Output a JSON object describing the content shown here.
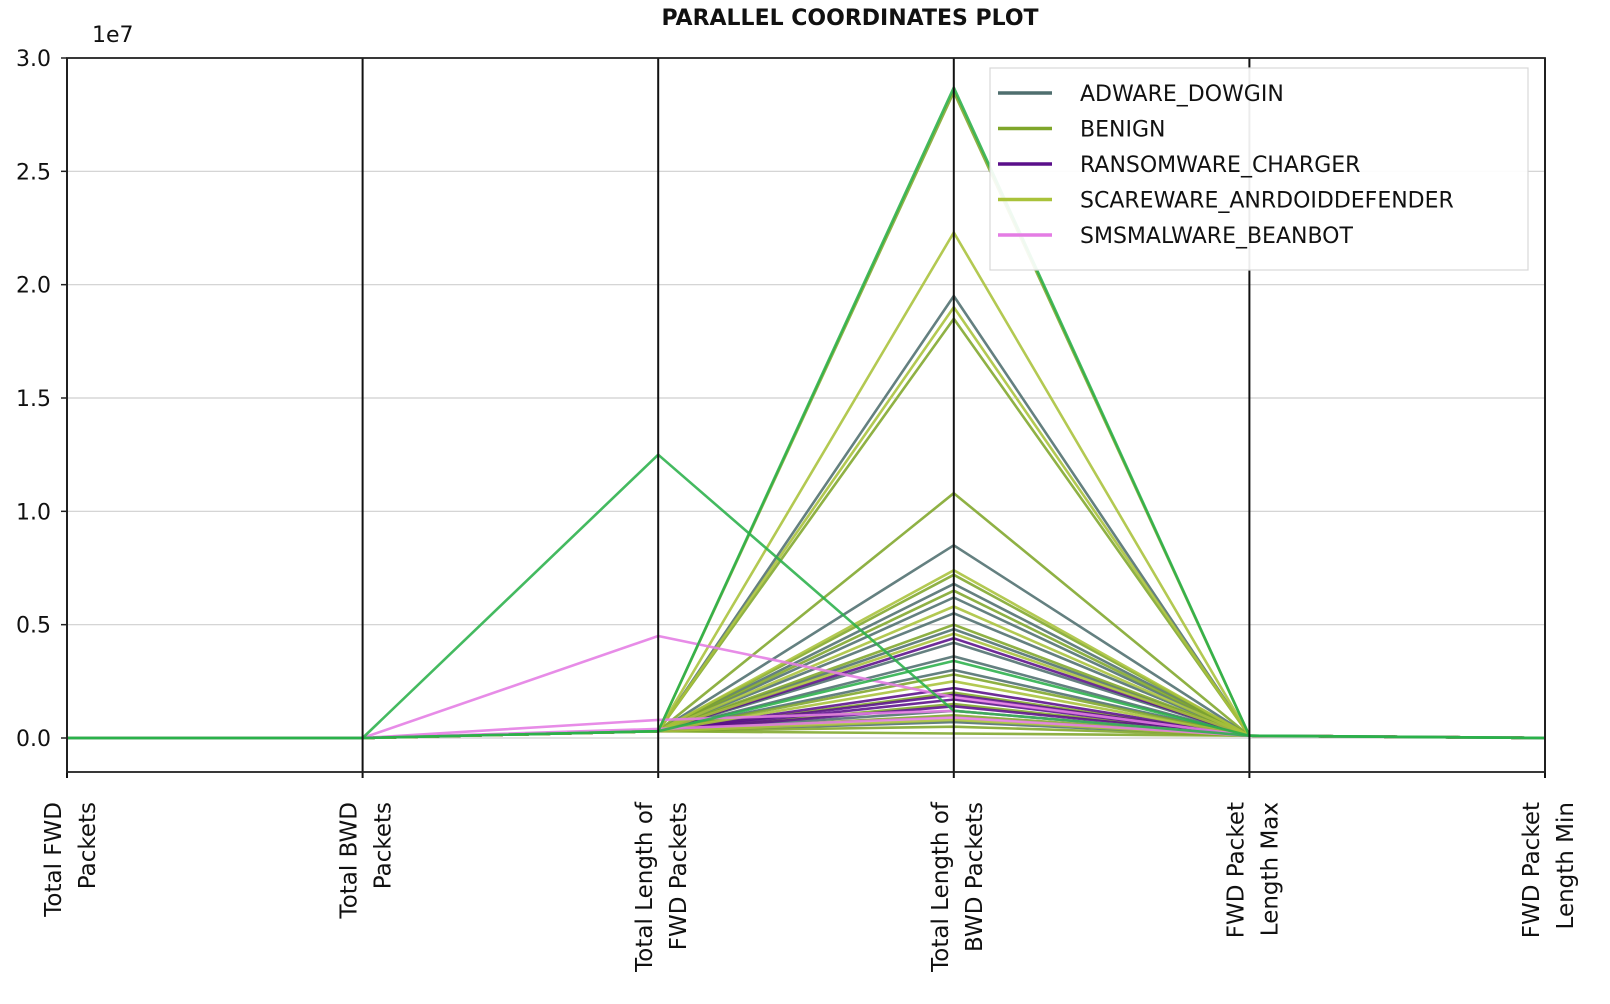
{
  "chart_data": {
    "type": "parallel-coordinates",
    "title": "PARALLEL COORDINATES PLOT",
    "y_scale_label": "1e7",
    "ylim": [
      -0.15,
      3.0
    ],
    "yticks": [
      0.0,
      0.5,
      1.0,
      1.5,
      2.0,
      2.5,
      3.0
    ],
    "ytick_labels": [
      "0.0",
      "0.5",
      "1.0",
      "1.5",
      "2.0",
      "2.5",
      "3.0"
    ],
    "axes": [
      {
        "line1": "Total FWD",
        "line2": "Packets"
      },
      {
        "line1": "Total BWD",
        "line2": "Packets"
      },
      {
        "line1": "Total Length of",
        "line2": "FWD Packets"
      },
      {
        "line1": "Total Length of",
        "line2": "BWD Packets"
      },
      {
        "line1": "FWD Packet",
        "line2": "Length Max"
      },
      {
        "line1": "FWD Packet",
        "line2": "Length Min"
      }
    ],
    "legend_position": "top-right",
    "series": [
      {
        "name": "ADWARE_DOWGIN",
        "color": "#4f6e6e",
        "lines": [
          [
            0,
            0,
            0.03,
            1.95,
            0.01,
            0
          ],
          [
            0,
            0,
            0.03,
            0.85,
            0.01,
            0
          ],
          [
            0,
            0,
            0.03,
            0.68,
            0.01,
            0
          ],
          [
            0,
            0,
            0.03,
            0.62,
            0.01,
            0
          ],
          [
            0,
            0,
            0.03,
            0.55,
            0.01,
            0
          ],
          [
            0,
            0,
            0.03,
            0.48,
            0.01,
            0
          ],
          [
            0,
            0,
            0.03,
            0.42,
            0.01,
            0
          ],
          [
            0,
            0,
            0.03,
            0.36,
            0.01,
            0
          ],
          [
            0,
            0,
            0.03,
            0.3,
            0.01,
            0
          ],
          [
            0,
            0,
            0.03,
            0.12,
            0.01,
            0
          ],
          [
            0,
            0,
            0.03,
            0.07,
            0.01,
            0
          ]
        ]
      },
      {
        "name": "BENIGN",
        "color": "#7fa62a",
        "lines": [
          [
            0,
            0,
            0.03,
            2.85,
            0.01,
            0
          ],
          [
            0,
            0,
            0.03,
            1.85,
            0.01,
            0
          ],
          [
            0,
            0,
            0.03,
            1.08,
            0.01,
            0
          ],
          [
            0,
            0,
            0.03,
            0.72,
            0.01,
            0
          ],
          [
            0,
            0,
            0.03,
            0.65,
            0.01,
            0
          ],
          [
            0,
            0,
            0.03,
            0.5,
            0.01,
            0
          ],
          [
            0,
            0,
            0.03,
            0.28,
            0.01,
            0
          ],
          [
            0,
            0,
            0.03,
            0.2,
            0.01,
            0
          ],
          [
            0,
            0,
            0.03,
            0.15,
            0.01,
            0
          ],
          [
            0,
            0,
            0.03,
            0.1,
            0.01,
            0
          ],
          [
            0,
            0,
            0.03,
            0.05,
            0.01,
            0
          ],
          [
            0,
            0,
            0.03,
            0.02,
            0.01,
            0
          ]
        ]
      },
      {
        "name": "RANSOMWARE_CHARGER",
        "color": "#5a0f8a",
        "lines": [
          [
            0,
            0,
            0.03,
            0.44,
            0.01,
            0
          ],
          [
            0,
            0,
            0.03,
            0.22,
            0.01,
            0
          ],
          [
            0,
            0,
            0.03,
            0.19,
            0.01,
            0
          ],
          [
            0,
            0,
            0.03,
            0.17,
            0.01,
            0
          ],
          [
            0,
            0,
            0.03,
            0.14,
            0.01,
            0
          ]
        ]
      },
      {
        "name": "SCAREWARE_ANRDOIDDEFENDER",
        "color": "#a9c23a",
        "lines": [
          [
            0,
            0,
            0.03,
            2.23,
            0.01,
            0
          ],
          [
            0,
            0,
            0.03,
            1.9,
            0.01,
            0
          ],
          [
            0,
            0,
            0.03,
            0.74,
            0.01,
            0
          ],
          [
            0,
            0,
            0.03,
            0.58,
            0.01,
            0
          ],
          [
            0,
            0,
            0.03,
            0.46,
            0.01,
            0
          ],
          [
            0,
            0,
            0.03,
            0.25,
            0.01,
            0
          ],
          [
            0,
            0,
            0.03,
            0.08,
            0.01,
            0
          ]
        ]
      },
      {
        "name": "SMSMALWARE_BEANBOT",
        "color": "#e47ce4",
        "lines": [
          [
            0,
            0,
            0.45,
            0.18,
            0.01,
            0
          ],
          [
            0,
            0,
            0.08,
            0.12,
            0.01,
            0
          ],
          [
            0,
            0,
            0.04,
            0.09,
            0.01,
            0
          ]
        ]
      },
      {
        "name": "",
        "legend": false,
        "color": "#2ab04a",
        "lines": [
          [
            0,
            0,
            1.25,
            0.12,
            0.01,
            0
          ],
          [
            0,
            0,
            0.03,
            2.87,
            0.01,
            0
          ],
          [
            0,
            0,
            0.03,
            0.34,
            0.01,
            0
          ]
        ]
      }
    ]
  }
}
